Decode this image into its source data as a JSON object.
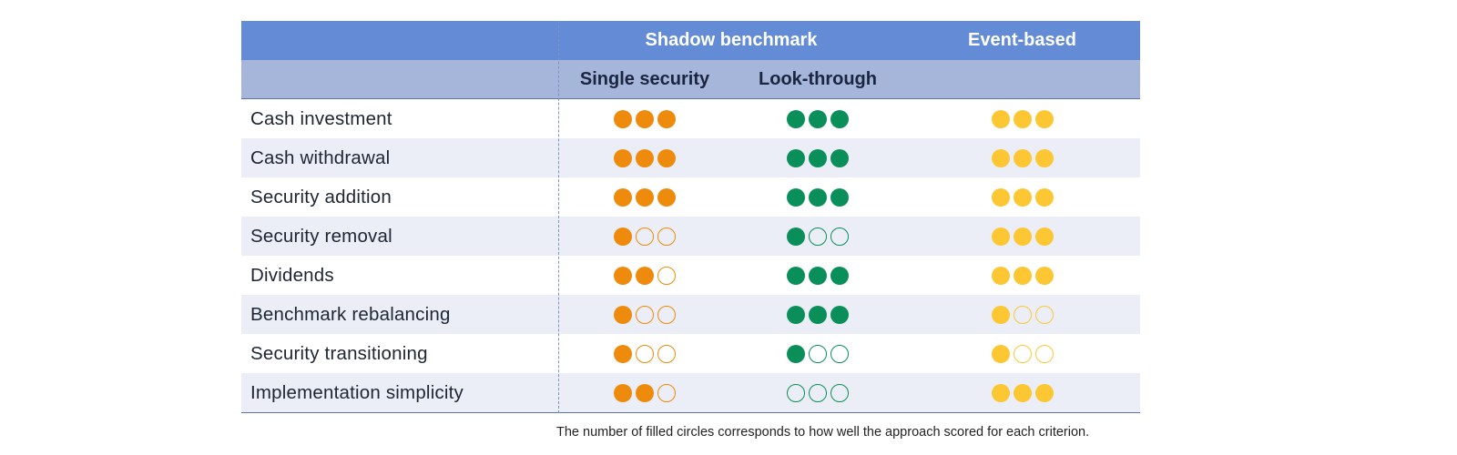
{
  "header": {
    "group_shadow": "Shadow benchmark",
    "group_event": "Event-based",
    "sub_single": "Single security",
    "sub_look": "Look-through"
  },
  "rows": [
    {
      "label": "Cash investment",
      "single": 3,
      "look": 3,
      "event": 3
    },
    {
      "label": "Cash withdrawal",
      "single": 3,
      "look": 3,
      "event": 3
    },
    {
      "label": "Security addition",
      "single": 3,
      "look": 3,
      "event": 3
    },
    {
      "label": "Security removal",
      "single": 1,
      "look": 1,
      "event": 3
    },
    {
      "label": "Dividends",
      "single": 2,
      "look": 3,
      "event": 3
    },
    {
      "label": "Benchmark rebalancing",
      "single": 1,
      "look": 3,
      "event": 1
    },
    {
      "label": "Security transitioning",
      "single": 1,
      "look": 1,
      "event": 1
    },
    {
      "label": "Implementation simplicity",
      "single": 2,
      "look": 0,
      "event": 3
    }
  ],
  "max_score": 3,
  "colors": {
    "single": "#ee8a0c",
    "look": "#0b8f5a",
    "event": "#fcc733",
    "header_top": "#648bd6",
    "header_sub": "#a6b5da",
    "row_alt": "#ebeef7"
  },
  "footnote": "The number of filled circles corresponds to how well the approach scored for each criterion."
}
